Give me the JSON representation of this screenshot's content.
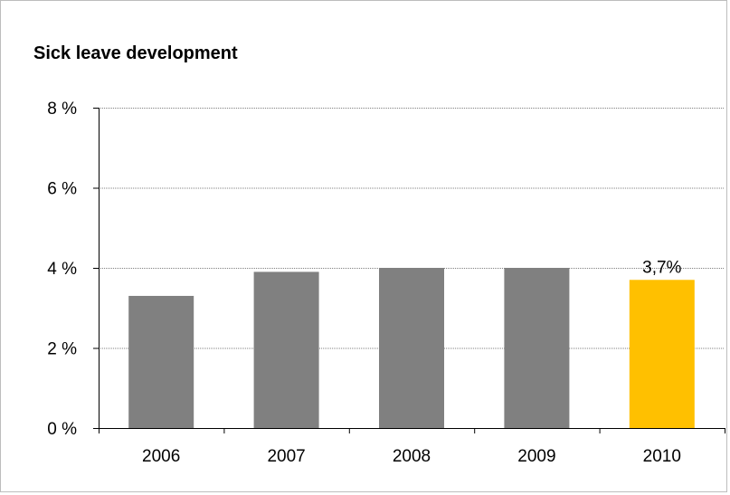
{
  "chart_data": {
    "type": "bar",
    "title": "Sick leave development",
    "xlabel": "",
    "ylabel": "",
    "categories": [
      "2006",
      "2007",
      "2008",
      "2009",
      "2010"
    ],
    "values": [
      3.3,
      3.9,
      4.0,
      4.0,
      3.7
    ],
    "ylim": [
      0,
      8
    ],
    "yticks": [
      0,
      2,
      4,
      6,
      8
    ],
    "ytick_labels": [
      "0 %",
      "2 %",
      "4 %",
      "6 %",
      "8 %"
    ],
    "bar_colors": [
      "#808080",
      "#808080",
      "#808080",
      "#808080",
      "#ffc000"
    ],
    "data_labels": [
      null,
      null,
      null,
      null,
      "3,7%"
    ],
    "grid": true,
    "gridline_color": "#808080",
    "legend": "none"
  }
}
